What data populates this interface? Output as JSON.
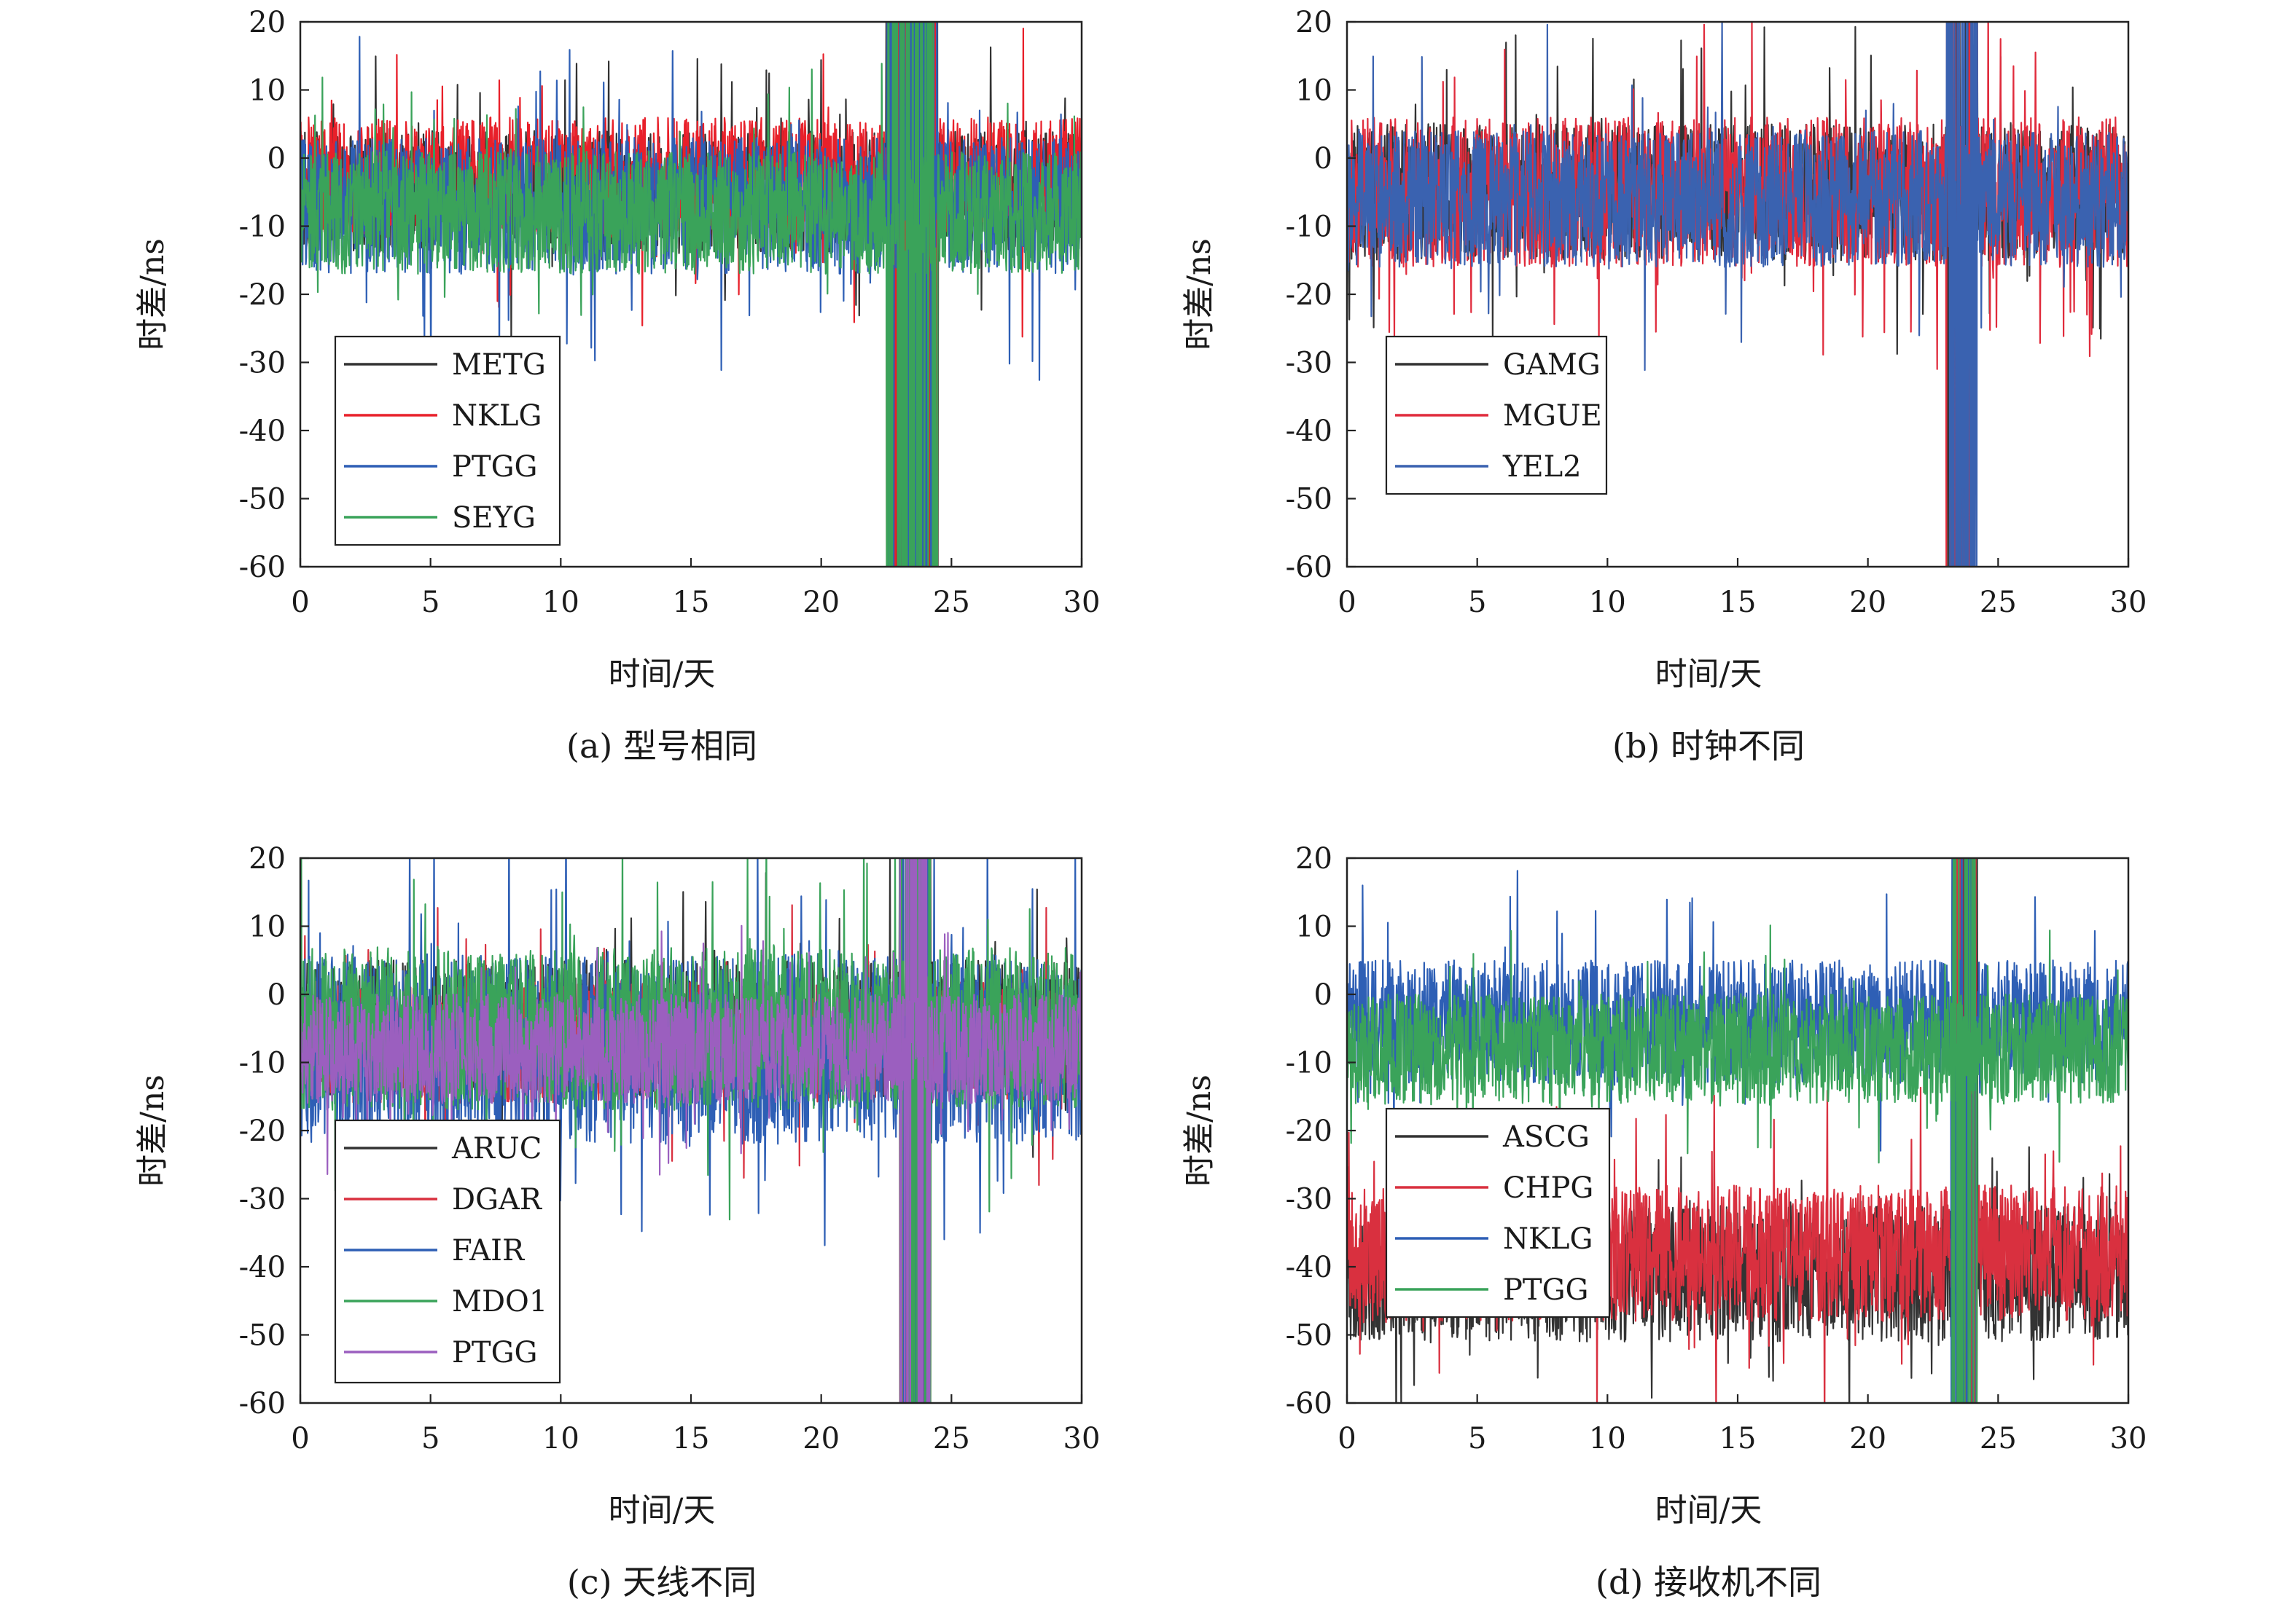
{
  "chart_data": [
    {
      "type": "line",
      "caption": "(a) 型号相同",
      "xlabel": "时间/天",
      "ylabel": "时差/ns",
      "xlim": [
        0,
        30
      ],
      "ylim": [
        -60,
        20
      ],
      "xticks": [
        0,
        5,
        10,
        15,
        20,
        25,
        30
      ],
      "yticks": [
        20,
        10,
        0,
        -10,
        -20,
        -30,
        -40,
        -50,
        -60
      ],
      "grid": false,
      "legend_position": "lower-left",
      "anomaly_window_days": [
        22.5,
        24.5
      ],
      "series": [
        {
          "name": "METG",
          "color": "#333333",
          "center": -5,
          "spread": 9
        },
        {
          "name": "NKLG",
          "color": "#e8202a",
          "center": -3,
          "spread": 9
        },
        {
          "name": "PTGG",
          "color": "#2e5fb5",
          "center": -7,
          "spread": 10
        },
        {
          "name": "SEYG",
          "color": "#3aa35a",
          "center": -8,
          "spread": 9
        }
      ]
    },
    {
      "type": "line",
      "caption": "(b) 时钟不同",
      "xlabel": "时间/天",
      "ylabel": "时差/ns",
      "xlim": [
        0,
        30
      ],
      "ylim": [
        -60,
        20
      ],
      "xticks": [
        0,
        5,
        10,
        15,
        20,
        25,
        30
      ],
      "yticks": [
        20,
        10,
        0,
        -10,
        -20,
        -30,
        -40,
        -50,
        -60
      ],
      "grid": false,
      "legend_position": "lower-left",
      "anomaly_window_days": [
        23.0,
        24.2
      ],
      "series": [
        {
          "name": "GAMG",
          "color": "#333333",
          "center": -5,
          "spread": 10
        },
        {
          "name": "MGUE",
          "color": "#e02b3c",
          "center": -5,
          "spread": 11
        },
        {
          "name": "YEL2",
          "color": "#3a62b0",
          "center": -6,
          "spread": 10
        }
      ]
    },
    {
      "type": "line",
      "caption": "(c) 天线不同",
      "xlabel": "时间/天",
      "ylabel": "时差/ns",
      "xlim": [
        0,
        30
      ],
      "ylim": [
        -60,
        20
      ],
      "xticks": [
        0,
        5,
        10,
        15,
        20,
        25,
        30
      ],
      "yticks": [
        20,
        10,
        0,
        -10,
        -20,
        -30,
        -40,
        -50,
        -60
      ],
      "grid": false,
      "legend_position": "lower-left",
      "anomaly_window_days": [
        23.0,
        24.2
      ],
      "series": [
        {
          "name": "ARUC",
          "color": "#333333",
          "center": -5,
          "spread": 10
        },
        {
          "name": "DGAR",
          "color": "#d9303f",
          "center": -7,
          "spread": 9
        },
        {
          "name": "FAIR",
          "color": "#2e5fb5",
          "center": -8,
          "spread": 14
        },
        {
          "name": "MDO1",
          "color": "#3aa35a",
          "center": -5,
          "spread": 12
        },
        {
          "name": "PTGG",
          "color": "#9b5fbf",
          "center": -8,
          "spread": 8
        }
      ]
    },
    {
      "type": "line",
      "caption": "(d) 接收机不同",
      "xlabel": "时间/天",
      "ylabel": "时差/ns",
      "xlim": [
        0,
        30
      ],
      "ylim": [
        -60,
        20
      ],
      "xticks": [
        0,
        5,
        10,
        15,
        20,
        25,
        30
      ],
      "yticks": [
        20,
        10,
        0,
        -10,
        -20,
        -30,
        -40,
        -50,
        -60
      ],
      "grid": false,
      "legend_position": "lower-left",
      "anomaly_window_days": [
        23.2,
        24.2
      ],
      "series": [
        {
          "name": "ASCG",
          "color": "#333333",
          "center": -41,
          "spread": 10
        },
        {
          "name": "CHPG",
          "color": "#d9303f",
          "center": -38,
          "spread": 10
        },
        {
          "name": "NKLG",
          "color": "#2e5fb5",
          "center": -4,
          "spread": 9
        },
        {
          "name": "PTGG",
          "color": "#3aa35a",
          "center": -8,
          "spread": 8
        }
      ]
    }
  ]
}
